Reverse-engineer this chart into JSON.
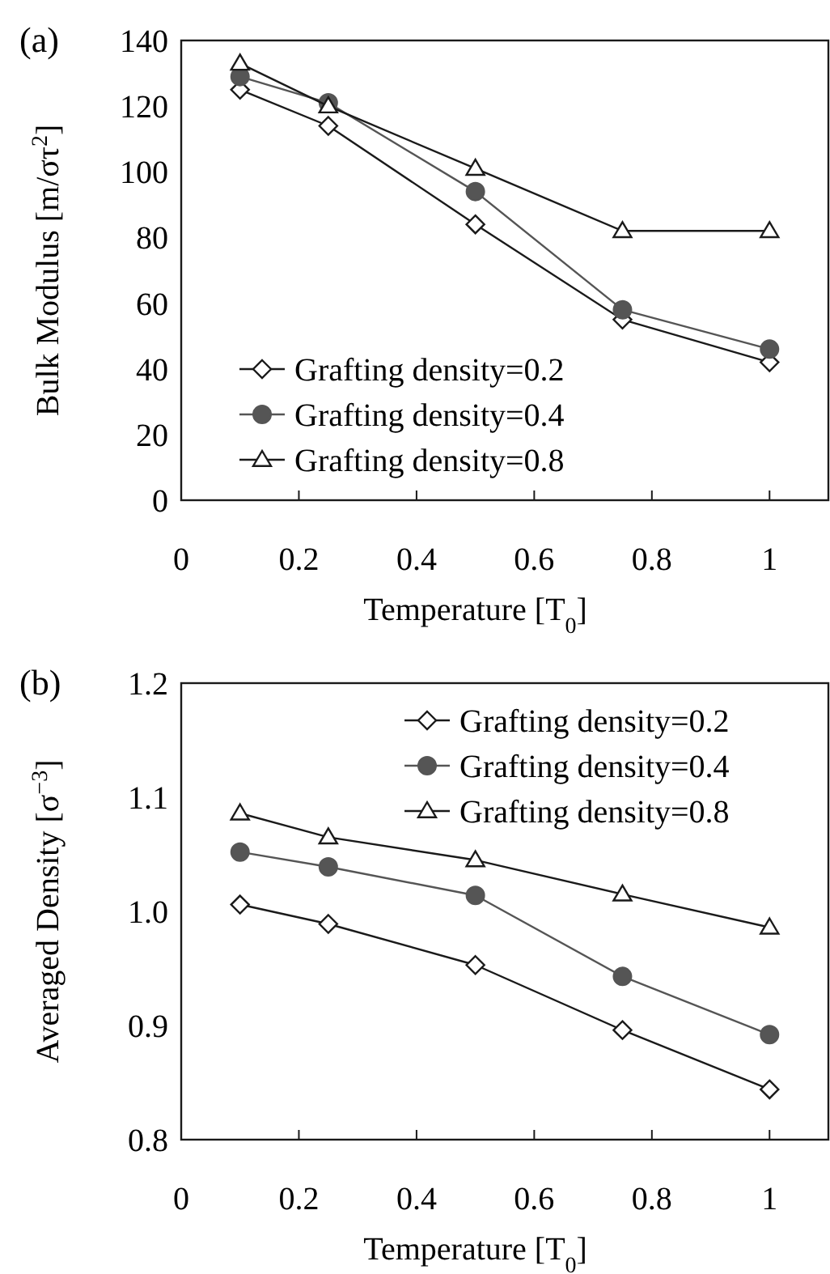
{
  "chart_data": [
    {
      "type": "line",
      "title": "(a)",
      "xlabel": "Temperature [T$_{0}$]",
      "ylabel": "Bulk Modulus [m/στ$^{2}$]",
      "x": [
        0.1,
        0.25,
        0.5,
        0.75,
        1
      ],
      "series": [
        {
          "name": "Grafting density=0.2",
          "color": "#1a1a1a",
          "marker": "diamond",
          "values": [
            125,
            114,
            84,
            55,
            42
          ]
        },
        {
          "name": "Grafting density=0.4",
          "color": "#555555",
          "marker": "circle",
          "values": [
            129,
            121,
            94,
            58,
            46
          ]
        },
        {
          "name": "Grafting density=0.8",
          "color": "#1a1a1a",
          "marker": "triangle",
          "values": [
            133,
            120,
            101,
            82,
            82
          ]
        }
      ],
      "xlim": [
        0,
        1.1
      ],
      "xticks": [
        0,
        0.2,
        0.4,
        0.6,
        0.8,
        1
      ],
      "ylim": [
        0,
        140
      ],
      "yticks": [
        0,
        20,
        40,
        60,
        80,
        100,
        120,
        140
      ],
      "grid": false,
      "legend": "bottom left"
    },
    {
      "type": "line",
      "title": "(b)",
      "xlabel": "Temperature [T$_{0}$]",
      "ylabel": "Averaged Density  [σ$^{−3}$]",
      "x": [
        0.1,
        0.25,
        0.5,
        0.75,
        1
      ],
      "series": [
        {
          "name": "Grafting density=0.2",
          "color": "#1a1a1a",
          "marker": "diamond",
          "values": [
            1.006,
            0.989,
            0.953,
            0.896,
            0.844
          ]
        },
        {
          "name": "Grafting density=0.4",
          "color": "#555555",
          "marker": "circle",
          "values": [
            1.052,
            1.039,
            1.014,
            0.943,
            0.892
          ]
        },
        {
          "name": "Grafting density=0.8",
          "color": "#1a1a1a",
          "marker": "triangle",
          "values": [
            1.086,
            1.065,
            1.045,
            1.015,
            0.986
          ]
        }
      ],
      "xlim": [
        0,
        1.1
      ],
      "xticks": [
        0,
        0.2,
        0.4,
        0.6,
        0.8,
        1
      ],
      "ylim": [
        0.8,
        1.2
      ],
      "yticks": [
        {
          "value": 0.8,
          "label": "0.8"
        },
        {
          "value": 0.9,
          "label": "0.9"
        },
        {
          "value": 1.0,
          "label": "1.0"
        },
        {
          "value": 1.1,
          "label": "1.1"
        },
        {
          "value": 1.2,
          "label": "1.2"
        }
      ],
      "grid": false,
      "legend": "top right"
    }
  ]
}
